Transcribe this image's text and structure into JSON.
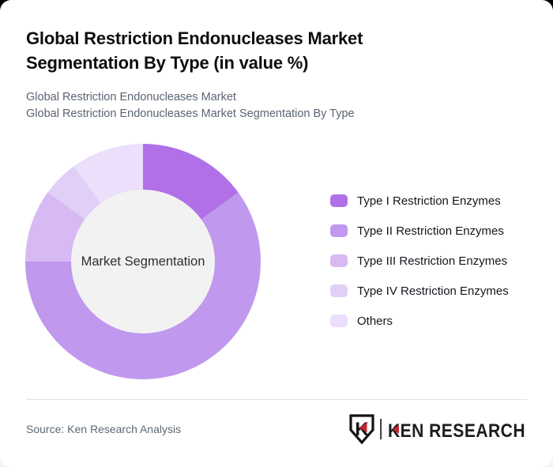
{
  "page": {
    "background_top": "#000000",
    "background_bottom": "#f3f3f3",
    "card_background": "#ffffff"
  },
  "header": {
    "title_line1": "Global Restriction Endonucleases Market",
    "title_line2": "Segmentation By Type (in value %)",
    "subtitle_line1": "Global Restriction Endonucleases Market",
    "subtitle_line2": "Global Restriction Endonucleases Market Segmentation By Type"
  },
  "chart_data": {
    "type": "pie",
    "subtype": "donut",
    "title": "Global Restriction Endonucleases Market Segmentation By Type (in value %)",
    "center_label": "Market Segmentation",
    "categories": [
      "Type I Restriction Enzymes",
      "Type II Restriction Enzymes",
      "Type III Restriction Enzymes",
      "Type IV Restriction Enzymes",
      "Others"
    ],
    "values": [
      15,
      60,
      10,
      5,
      10
    ],
    "unit": "% of value (estimated from arc angles; numeric labels not displayed)",
    "colors": [
      "#b170e8",
      "#c098ee",
      "#d7b9f3",
      "#e2cff7",
      "#ecdffb"
    ],
    "inner_circle_color": "#f2f2f2",
    "start_angle_deg": 0,
    "direction": "clockwise",
    "legend_position": "right",
    "data_labels_shown": false
  },
  "footer": {
    "source": "Source: Ken Research Analysis",
    "logo_monogram": "K",
    "logo_text": "KEN RESEARCH",
    "logo_red": "#c1272d",
    "logo_black": "#1d1d1d"
  }
}
